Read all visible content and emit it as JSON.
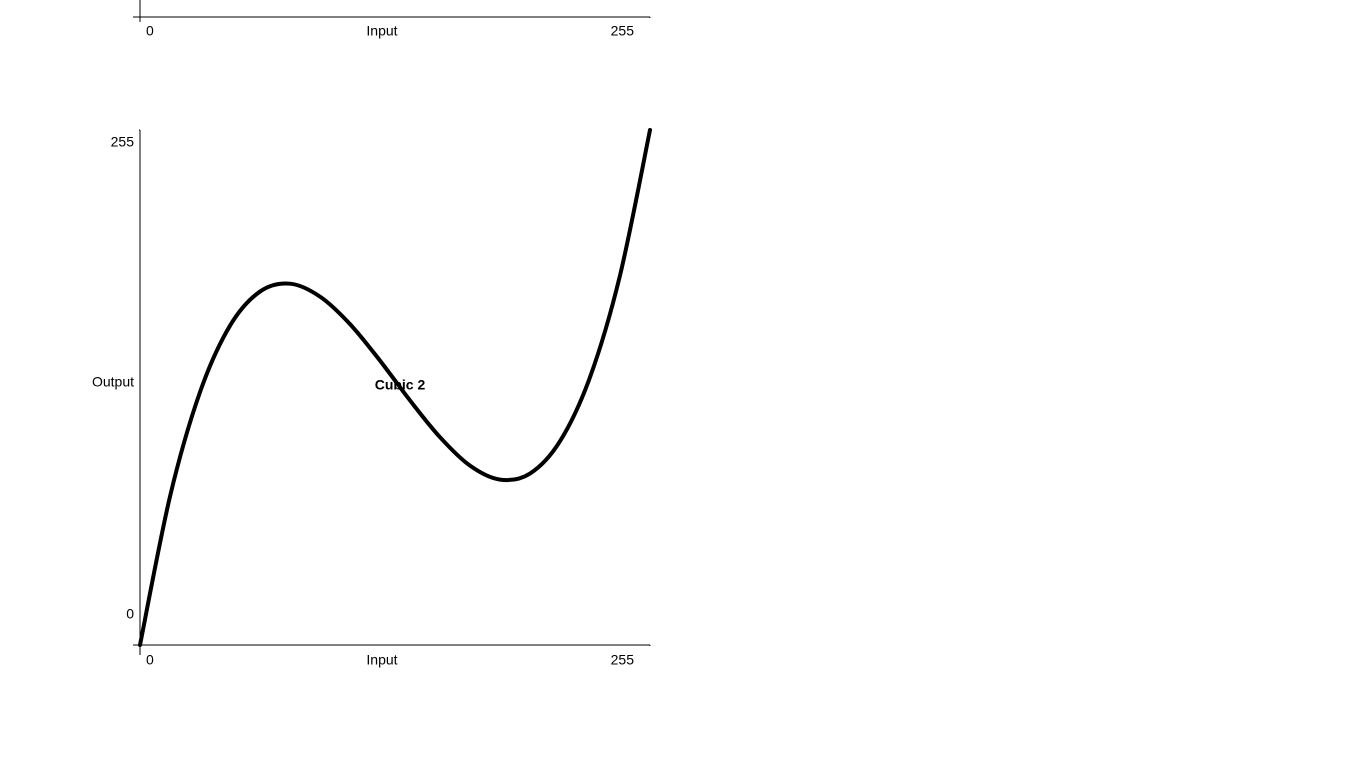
{
  "chart_data": [
    {
      "type": "line",
      "xlabel": "Input",
      "xlim": [
        0,
        255
      ],
      "xticks": [
        0,
        255
      ]
    },
    {
      "type": "line",
      "xlabel": "Input",
      "ylabel": "Output",
      "annotation": "Cubic 2",
      "xlim": [
        0,
        255
      ],
      "ylim": [
        0,
        255
      ],
      "xticks": [
        0,
        255
      ],
      "yticks": [
        0,
        255
      ],
      "x": [
        0,
        15,
        30,
        45,
        60,
        75,
        90,
        105,
        120,
        135,
        150,
        165,
        180,
        195,
        210,
        225,
        240,
        255
      ],
      "values": [
        0,
        73.5,
        125.2,
        158.1,
        175.0,
        178.9,
        172.5,
        158.9,
        140.8,
        121.1,
        102.9,
        88.8,
        81.9,
        84.9,
        100.9,
        132.6,
        183.0,
        255
      ],
      "color": "#000000"
    }
  ]
}
